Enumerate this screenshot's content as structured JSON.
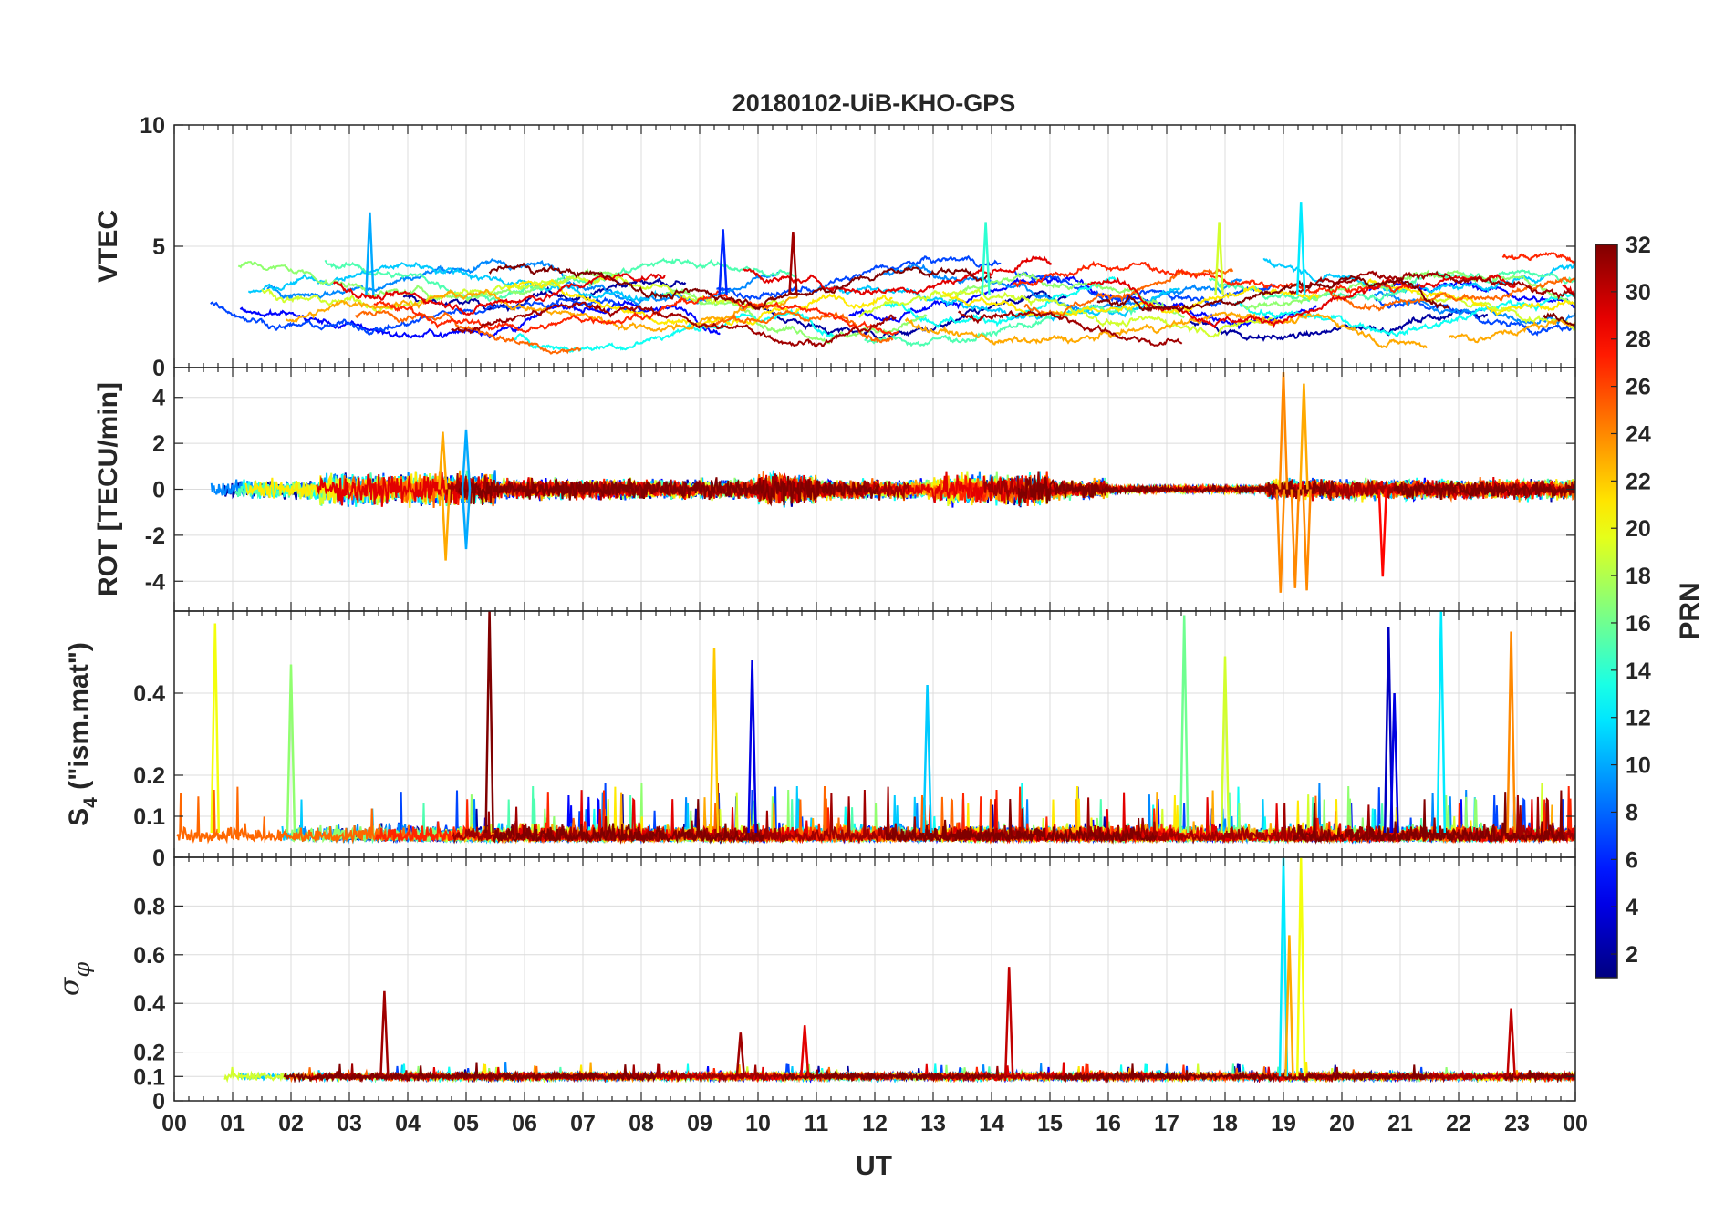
{
  "chart_data": {
    "type": "line",
    "title": "20180102-UiB-KHO-GPS",
    "x": {
      "label": "UT",
      "range": [
        0,
        24
      ],
      "ticks": [
        0,
        1,
        2,
        3,
        4,
        5,
        6,
        7,
        8,
        9,
        10,
        11,
        12,
        13,
        14,
        15,
        16,
        17,
        18,
        19,
        20,
        21,
        22,
        23,
        24
      ],
      "tick_labels": [
        "00",
        "01",
        "02",
        "03",
        "04",
        "05",
        "06",
        "07",
        "08",
        "09",
        "10",
        "11",
        "12",
        "13",
        "14",
        "15",
        "16",
        "17",
        "18",
        "19",
        "20",
        "21",
        "22",
        "23",
        "00"
      ]
    },
    "panels": [
      {
        "name": "vtec",
        "ylabel": "VTEC",
        "ylim": [
          0,
          10
        ],
        "yticks": [
          0,
          5,
          10
        ],
        "ytick_labels": [
          "0",
          "5",
          "10"
        ],
        "baseline": 3.0,
        "noise": 0.5,
        "spikes": [
          {
            "t": 3.35,
            "v": 6.4,
            "prn": 10
          },
          {
            "t": 9.4,
            "v": 5.7,
            "prn": 6
          },
          {
            "t": 10.6,
            "v": 5.6,
            "prn": 31
          },
          {
            "t": 13.9,
            "v": 6.0,
            "prn": 14
          },
          {
            "t": 19.3,
            "v": 6.8,
            "prn": 12
          },
          {
            "t": 17.9,
            "v": 6.0,
            "prn": 19
          }
        ]
      },
      {
        "name": "rot",
        "ylabel": "ROT [TECU/min]",
        "ylim": [
          -5.3,
          5.3
        ],
        "yticks": [
          -4,
          -2,
          0,
          2,
          4
        ],
        "ytick_labels": [
          "-4",
          "-2",
          "0",
          "2",
          "4"
        ],
        "baseline": 0,
        "noise": 0.35,
        "spikes": [
          {
            "t": 19.0,
            "v": 5.1,
            "prn": 24
          },
          {
            "t": 18.95,
            "v": -4.5,
            "prn": 24
          },
          {
            "t": 19.2,
            "v": -4.3,
            "prn": 24
          },
          {
            "t": 19.35,
            "v": 4.6,
            "prn": 23
          },
          {
            "t": 19.4,
            "v": -4.4,
            "prn": 24
          },
          {
            "t": 20.7,
            "v": -3.8,
            "prn": 28
          },
          {
            "t": 4.6,
            "v": 2.5,
            "prn": 23
          },
          {
            "t": 4.65,
            "v": -3.1,
            "prn": 23
          },
          {
            "t": 5.0,
            "v": 2.6,
            "prn": 10
          },
          {
            "t": 5.0,
            "v": -2.6,
            "prn": 10
          }
        ]
      },
      {
        "name": "s4",
        "ylabel": "S4 (\"ism.mat\")",
        "ylim": [
          0,
          0.6
        ],
        "yticks": [
          0,
          0.1,
          0.2,
          0.4
        ],
        "ytick_labels": [
          "0",
          "0.1",
          "0.2",
          "0.4"
        ],
        "baseline": 0.06,
        "noise": 0.03,
        "spikes": [
          {
            "t": 0.7,
            "v": 0.57,
            "prn": 20
          },
          {
            "t": 2.0,
            "v": 0.47,
            "prn": 17
          },
          {
            "t": 5.4,
            "v": 0.6,
            "prn": 32
          },
          {
            "t": 9.25,
            "v": 0.51,
            "prn": 22
          },
          {
            "t": 9.9,
            "v": 0.48,
            "prn": 4
          },
          {
            "t": 12.9,
            "v": 0.42,
            "prn": 11
          },
          {
            "t": 17.3,
            "v": 0.59,
            "prn": 16
          },
          {
            "t": 18.0,
            "v": 0.49,
            "prn": 19
          },
          {
            "t": 20.8,
            "v": 0.56,
            "prn": 3
          },
          {
            "t": 21.7,
            "v": 0.6,
            "prn": 12
          },
          {
            "t": 22.9,
            "v": 0.55,
            "prn": 24
          },
          {
            "t": 20.9,
            "v": 0.4,
            "prn": 4
          }
        ]
      },
      {
        "name": "sigma_phi",
        "ylabel": "σφ",
        "ylim": [
          0,
          1.0
        ],
        "yticks": [
          0,
          0.1,
          0.2,
          0.4,
          0.6,
          0.8
        ],
        "ytick_labels": [
          "0",
          "0.1",
          "0.2",
          "0.4",
          "0.6",
          "0.8"
        ],
        "baseline": 0.1,
        "noise": 0.012,
        "spikes": [
          {
            "t": 19.0,
            "v": 1.0,
            "prn": 12
          },
          {
            "t": 19.3,
            "v": 1.0,
            "prn": 20
          },
          {
            "t": 19.1,
            "v": 0.68,
            "prn": 23
          },
          {
            "t": 14.3,
            "v": 0.55,
            "prn": 30
          },
          {
            "t": 3.6,
            "v": 0.45,
            "prn": 31
          },
          {
            "t": 22.9,
            "v": 0.38,
            "prn": 30
          },
          {
            "t": 10.8,
            "v": 0.31,
            "prn": 29
          },
          {
            "t": 9.7,
            "v": 0.28,
            "prn": 31
          }
        ]
      }
    ],
    "colorbar": {
      "label": "PRN",
      "range": [
        1,
        32
      ],
      "ticks": [
        2,
        4,
        6,
        8,
        10,
        12,
        14,
        16,
        18,
        20,
        22,
        24,
        26,
        28,
        30,
        32
      ],
      "tick_labels": [
        "2",
        "4",
        "6",
        "8",
        "10",
        "12",
        "14",
        "16",
        "18",
        "20",
        "22",
        "24",
        "26",
        "28",
        "30",
        "32"
      ],
      "colormap": "jet"
    },
    "grid": true
  },
  "colors": {
    "axis": "#262626",
    "grid": "#dcdcdc",
    "background": "#ffffff"
  }
}
